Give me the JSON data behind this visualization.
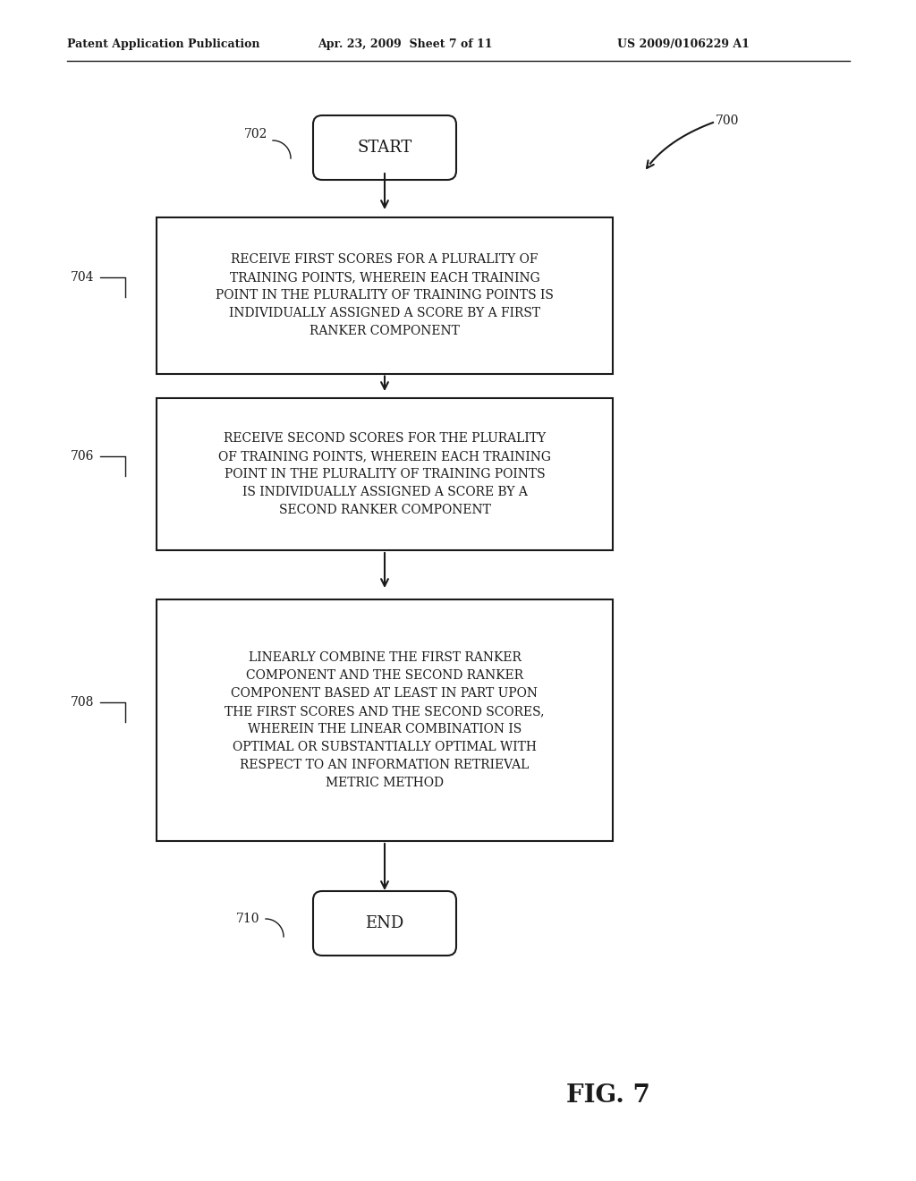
{
  "bg_color": "#ffffff",
  "header_left": "Patent Application Publication",
  "header_mid": "Apr. 23, 2009  Sheet 7 of 11",
  "header_right": "US 2009/0106229 A1",
  "fig_label": "FIG. 7",
  "diagram_label": "700",
  "start_label": "702",
  "start_text": "START",
  "box1_label": "704",
  "box1_text": "RECEIVE FIRST SCORES FOR A PLURALITY OF\nTRAINING POINTS, WHEREIN EACH TRAINING\nPOINT IN THE PLURALITY OF TRAINING POINTS IS\nINDIVIDUALLY ASSIGNED A SCORE BY A FIRST\nRANKER COMPONENT",
  "box2_label": "706",
  "box2_text": "RECEIVE SECOND SCORES FOR THE PLURALITY\nOF TRAINING POINTS, WHEREIN EACH TRAINING\nPOINT IN THE PLURALITY OF TRAINING POINTS\nIS INDIVIDUALLY ASSIGNED A SCORE BY A\nSECOND RANKER COMPONENT",
  "box3_label": "708",
  "box3_text": "LINEARLY COMBINE THE FIRST RANKER\nCOMPONENT AND THE SECOND RANKER\nCOMPONENT BASED AT LEAST IN PART UPON\nTHE FIRST SCORES AND THE SECOND SCORES,\nWHEREIN THE LINEAR COMBINATION IS\nOPTIMAL OR SUBSTANTIALLY OPTIMAL WITH\nRESPECT TO AN INFORMATION RETRIEVAL\nMETRIC METHOD",
  "end_label": "710",
  "end_text": "END",
  "text_color": "#1a1a1a",
  "box_edge_color": "#1a1a1a",
  "arrow_color": "#1a1a1a"
}
